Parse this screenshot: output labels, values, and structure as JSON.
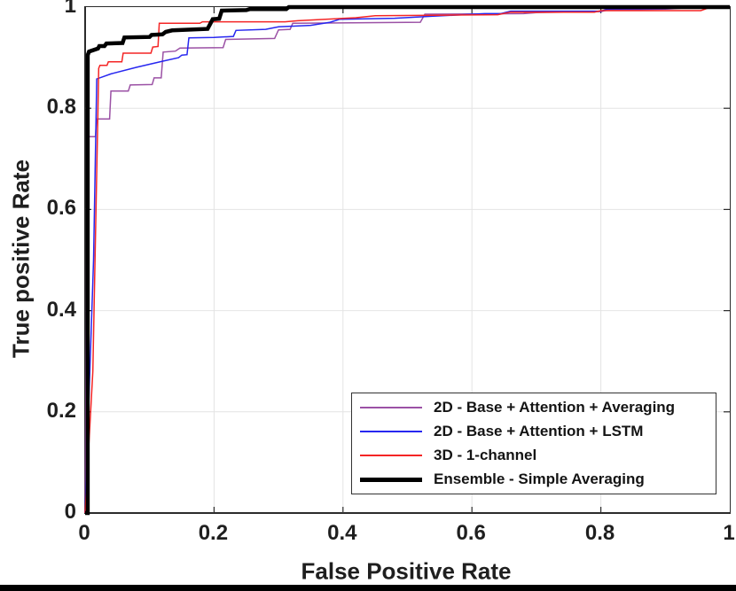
{
  "figure": {
    "background": "#ffffff",
    "footer_bar_color": "#000000"
  },
  "chart_data": {
    "type": "line",
    "subtype": "roc-curves",
    "title": "",
    "xlabel": "False Positive Rate",
    "ylabel": "True positive Rate",
    "xlim": [
      0,
      1
    ],
    "ylim": [
      0,
      1
    ],
    "grid": true,
    "grid_color": "#e4e4e4",
    "axis_color": "#2b2b2b",
    "tick_length": 7,
    "xticks": [
      0,
      0.2,
      0.4,
      0.6,
      0.8,
      1
    ],
    "xtick_labels": [
      "0",
      "0.2",
      "0.4",
      "0.6",
      "0.8",
      "1"
    ],
    "yticks": [
      0,
      0.2,
      0.4,
      0.6,
      0.8,
      1
    ],
    "ytick_labels": [
      "0",
      "0.2",
      "0.4",
      "0.6",
      "0.8",
      "1"
    ],
    "legend_position": "bottom-right",
    "series": [
      {
        "name": "2D - Base + Attention + Averaging",
        "color": "#9b51a5",
        "width": 1.5,
        "points": [
          [
            0,
            0
          ],
          [
            0.002,
            0.45
          ],
          [
            0.003,
            0.744
          ],
          [
            0.016,
            0.744
          ],
          [
            0.018,
            0.779
          ],
          [
            0.038,
            0.779
          ],
          [
            0.04,
            0.834
          ],
          [
            0.067,
            0.834
          ],
          [
            0.07,
            0.846
          ],
          [
            0.104,
            0.847
          ],
          [
            0.107,
            0.86
          ],
          [
            0.118,
            0.86
          ],
          [
            0.121,
            0.911
          ],
          [
            0.14,
            0.913
          ],
          [
            0.147,
            0.919
          ],
          [
            0.214,
            0.92
          ],
          [
            0.218,
            0.936
          ],
          [
            0.294,
            0.938
          ],
          [
            0.3,
            0.955
          ],
          [
            0.318,
            0.956
          ],
          [
            0.322,
            0.968
          ],
          [
            0.52,
            0.97
          ],
          [
            0.527,
            0.986
          ],
          [
            0.68,
            0.987
          ],
          [
            0.7,
            0.989
          ],
          [
            0.8,
            0.991
          ],
          [
            0.81,
            0.994
          ],
          [
            0.9,
            0.996
          ],
          [
            0.955,
            1
          ],
          [
            1,
            1
          ]
        ]
      },
      {
        "name": "2D - Base + Attention + LSTM",
        "color": "#2727f0",
        "width": 1.5,
        "points": [
          [
            0,
            0
          ],
          [
            0.013,
            0.5
          ],
          [
            0.018,
            0.858
          ],
          [
            0.04,
            0.868
          ],
          [
            0.08,
            0.881
          ],
          [
            0.12,
            0.893
          ],
          [
            0.145,
            0.9
          ],
          [
            0.15,
            0.905
          ],
          [
            0.158,
            0.906
          ],
          [
            0.161,
            0.939
          ],
          [
            0.2,
            0.94
          ],
          [
            0.23,
            0.942
          ],
          [
            0.234,
            0.954
          ],
          [
            0.28,
            0.956
          ],
          [
            0.3,
            0.961
          ],
          [
            0.35,
            0.964
          ],
          [
            0.38,
            0.97
          ],
          [
            0.395,
            0.976
          ],
          [
            0.48,
            0.978
          ],
          [
            0.54,
            0.982
          ],
          [
            0.62,
            0.987
          ],
          [
            0.645,
            0.987
          ],
          [
            0.66,
            0.992
          ],
          [
            0.8,
            0.992
          ],
          [
            0.81,
            0.996
          ],
          [
            0.9,
            0.997
          ],
          [
            0.955,
            1
          ],
          [
            1,
            1
          ]
        ]
      },
      {
        "name": "3D - 1-channel",
        "color": "#f42525",
        "width": 1.5,
        "points": [
          [
            0,
            0
          ],
          [
            0.012,
            0.28
          ],
          [
            0.02,
            0.8
          ],
          [
            0.021,
            0.879
          ],
          [
            0.023,
            0.885
          ],
          [
            0.034,
            0.885
          ],
          [
            0.036,
            0.892
          ],
          [
            0.057,
            0.892
          ],
          [
            0.059,
            0.909
          ],
          [
            0.102,
            0.909
          ],
          [
            0.105,
            0.921
          ],
          [
            0.113,
            0.922
          ],
          [
            0.115,
            0.968
          ],
          [
            0.178,
            0.968
          ],
          [
            0.182,
            0.971
          ],
          [
            0.31,
            0.971
          ],
          [
            0.33,
            0.973
          ],
          [
            0.42,
            0.979
          ],
          [
            0.45,
            0.983
          ],
          [
            0.56,
            0.984
          ],
          [
            0.64,
            0.985
          ],
          [
            0.66,
            0.99
          ],
          [
            0.79,
            0.99
          ],
          [
            0.8,
            0.993
          ],
          [
            0.955,
            0.993
          ],
          [
            0.97,
            1
          ],
          [
            1,
            1
          ]
        ]
      },
      {
        "name": "Ensemble - Simple Averaging",
        "color": "#000000",
        "width": 4.5,
        "points": [
          [
            0,
            0
          ],
          [
            0.004,
            0
          ],
          [
            0.004,
            0.905
          ],
          [
            0.006,
            0.912
          ],
          [
            0.02,
            0.918
          ],
          [
            0.022,
            0.923
          ],
          [
            0.03,
            0.923
          ],
          [
            0.033,
            0.928
          ],
          [
            0.058,
            0.929
          ],
          [
            0.061,
            0.94
          ],
          [
            0.1,
            0.941
          ],
          [
            0.103,
            0.945
          ],
          [
            0.12,
            0.946
          ],
          [
            0.125,
            0.951
          ],
          [
            0.135,
            0.954
          ],
          [
            0.19,
            0.957
          ],
          [
            0.198,
            0.976
          ],
          [
            0.208,
            0.977
          ],
          [
            0.212,
            0.993
          ],
          [
            0.25,
            0.994
          ],
          [
            0.255,
            0.996
          ],
          [
            0.312,
            0.996
          ],
          [
            0.316,
            1
          ],
          [
            1,
            1
          ]
        ]
      }
    ]
  }
}
